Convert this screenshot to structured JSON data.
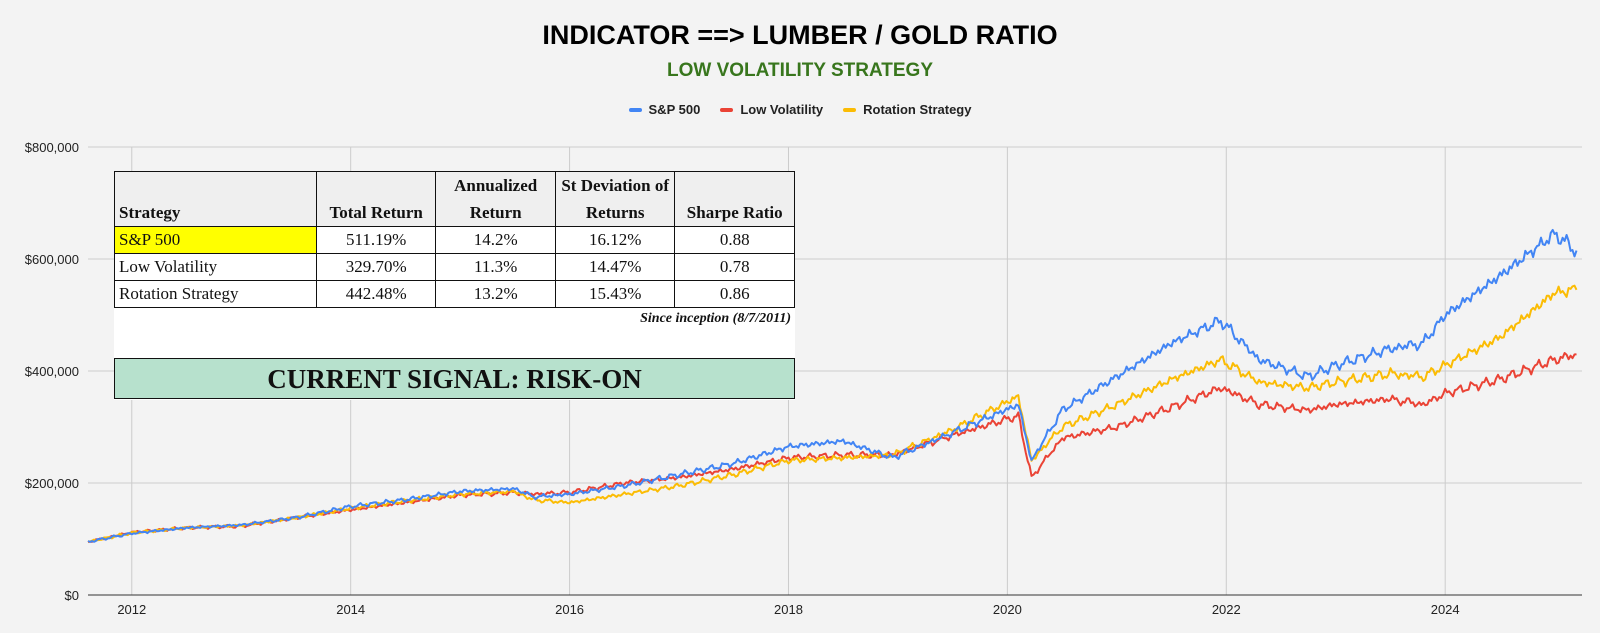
{
  "chart_data": {
    "type": "line",
    "title": "INDICATOR ==> LUMBER / GOLD RATIO",
    "subtitle": "LOW VOLATILITY STRATEGY",
    "ylim": [
      0,
      800000
    ],
    "y_ticks": [
      0,
      200000,
      400000,
      600000,
      800000
    ],
    "y_tick_labels": [
      "$0",
      "$200,000",
      "$400,000",
      "$600,000",
      "$800,000"
    ],
    "xlim": [
      2011.6,
      2025.25
    ],
    "x_ticks": [
      2012,
      2014,
      2016,
      2018,
      2020,
      2022,
      2024
    ],
    "x_tick_labels": [
      "2012",
      "2014",
      "2016",
      "2018",
      "2020",
      "2022",
      "2024"
    ],
    "grid": true,
    "legend_position": "top-center",
    "x": [
      2011.6,
      2012.0,
      2012.5,
      2013.0,
      2013.5,
      2014.0,
      2014.5,
      2015.0,
      2015.5,
      2015.67,
      2016.0,
      2016.5,
      2017.0,
      2017.5,
      2018.0,
      2018.5,
      2018.95,
      2019.5,
      2020.1,
      2020.22,
      2020.5,
      2021.0,
      2021.5,
      2021.95,
      2022.3,
      2022.75,
      2023.0,
      2023.5,
      2023.8,
      2024.0,
      2024.5,
      2025.0,
      2025.2
    ],
    "series": [
      {
        "name": "S&P 500",
        "color": "#4285f4",
        "values": [
          95000,
          110000,
          120000,
          125000,
          138000,
          158000,
          170000,
          185000,
          190000,
          175000,
          180000,
          195000,
          215000,
          235000,
          265000,
          275000,
          245000,
          290000,
          340000,
          240000,
          330000,
          390000,
          450000,
          490000,
          420000,
          390000,
          410000,
          440000,
          450000,
          500000,
          570000,
          645000,
          615000
        ]
      },
      {
        "name": "Low Volatility",
        "color": "#ea4335",
        "values": [
          95000,
          112000,
          120000,
          123000,
          138000,
          152000,
          165000,
          178000,
          183000,
          180000,
          183000,
          200000,
          210000,
          225000,
          245000,
          250000,
          250000,
          285000,
          320000,
          210000,
          280000,
          300000,
          335000,
          370000,
          340000,
          330000,
          340000,
          350000,
          340000,
          360000,
          385000,
          420000,
          430000
        ]
      },
      {
        "name": "Rotation Strategy",
        "color": "#fbbc04",
        "values": [
          95000,
          111000,
          120000,
          124000,
          138000,
          155000,
          168000,
          180000,
          185000,
          170000,
          165000,
          180000,
          195000,
          215000,
          240000,
          245000,
          250000,
          295000,
          355000,
          240000,
          300000,
          340000,
          385000,
          420000,
          380000,
          370000,
          380000,
          395000,
          390000,
          410000,
          460000,
          540000,
          545000
        ]
      }
    ]
  },
  "table": {
    "headers": [
      "Strategy",
      "Total Return",
      "Annualized Return",
      "St Deviation of Returns",
      "Sharpe Ratio"
    ],
    "rows": [
      [
        "S&P 500",
        "511.19%",
        "14.2%",
        "16.12%",
        "0.88"
      ],
      [
        "Low Volatility",
        "329.70%",
        "11.3%",
        "14.47%",
        "0.78"
      ],
      [
        "Rotation Strategy",
        "442.48%",
        "13.2%",
        "15.43%",
        "0.86"
      ]
    ],
    "highlight_color": "#ffff00",
    "note": "Since inception (8/7/2011)"
  },
  "signal": {
    "text": "CURRENT SIGNAL: RISK-ON",
    "color": "#b7e1cd"
  }
}
